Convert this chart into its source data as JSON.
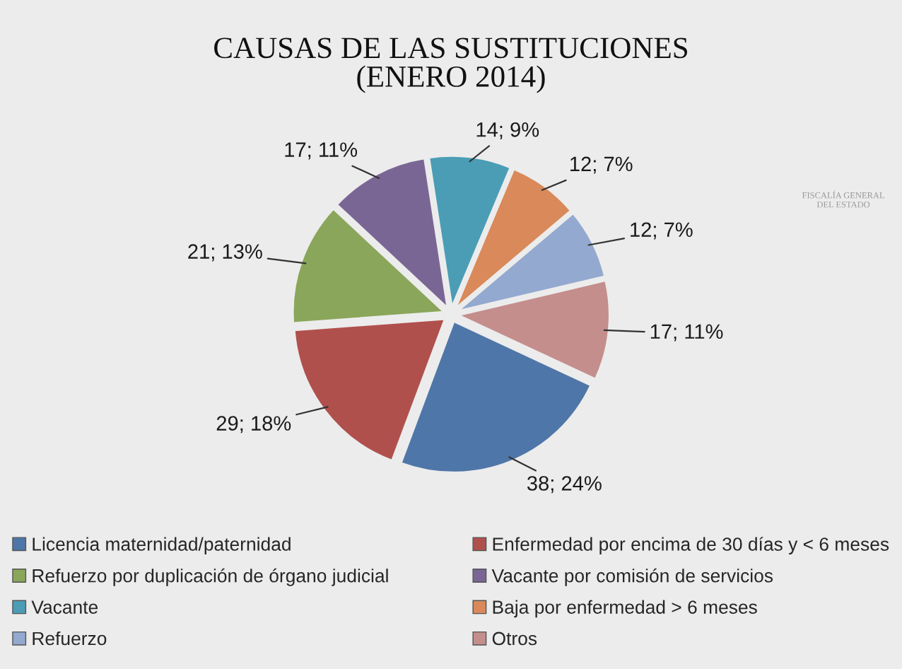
{
  "chart_data": {
    "type": "pie",
    "title": "CAUSAS DE LAS SUSTITUCIONES\n(ENERO 2014)",
    "categories": [
      "Licencia maternidad/paternidad",
      "Enfermedad por encima de 30 días y < 6 meses",
      "Refuerzo por duplicación de órgano judicial",
      "Vacante por comisión de servicios",
      "Vacante",
      "Baja por enfermedad > 6 meses",
      "Refuerzo",
      "Otros"
    ],
    "values": [
      38,
      29,
      21,
      17,
      14,
      12,
      12,
      17
    ],
    "value_labels": [
      "38; 24%",
      "29; 18%",
      "21; 13%",
      "17; 11%",
      "14; 9%",
      "12; 7%",
      "12; 7%",
      "17; 11%"
    ],
    "colors": [
      "#4f76a8",
      "#b0504d",
      "#8aa65a",
      "#7a6694",
      "#4a9db5",
      "#d9895a",
      "#93a9cf",
      "#c48e8c"
    ],
    "legend": "bottom",
    "annotations": [
      "FISCALÍA GENERAL\nDEL ESTADO"
    ]
  }
}
